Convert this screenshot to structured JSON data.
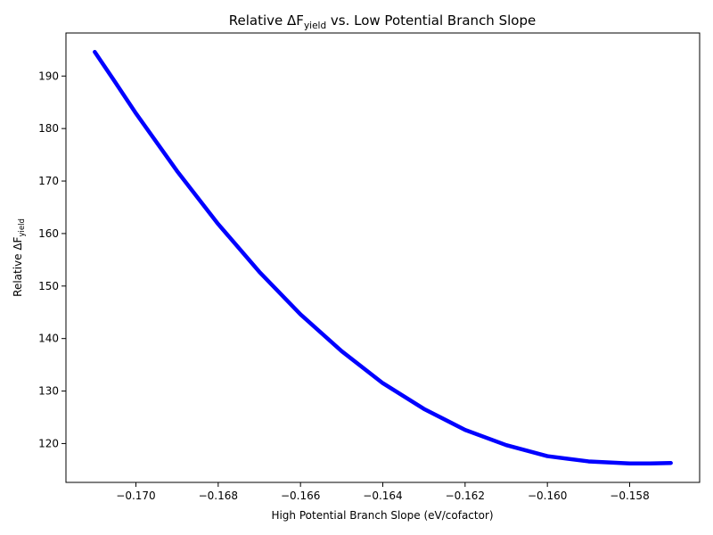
{
  "chart_data": {
    "type": "line",
    "title": {
      "main": "Relative ΔF",
      "sub": "yield",
      "suffix": " vs. Low Potential Branch Slope"
    },
    "xlabel": "High Potential Branch Slope (eV/cofactor)",
    "ylabel": {
      "main": "Relative ΔF",
      "sub": "yield"
    },
    "xlim": [
      -0.1717,
      -0.1563
    ],
    "ylim": [
      112.6,
      198.2
    ],
    "xticks": [
      -0.17,
      -0.168,
      -0.166,
      -0.164,
      -0.162,
      -0.16,
      -0.158
    ],
    "xtick_labels": [
      "−0.170",
      "−0.168",
      "−0.166",
      "−0.164",
      "−0.162",
      "−0.160",
      "−0.158"
    ],
    "yticks": [
      120,
      130,
      140,
      150,
      160,
      170,
      180,
      190
    ],
    "ytick_labels": [
      "120",
      "130",
      "140",
      "150",
      "160",
      "170",
      "180",
      "190"
    ],
    "grid": false,
    "legend": "none",
    "color": "#0000ff",
    "series": [
      {
        "x": [
          -0.171,
          -0.1705,
          -0.17,
          -0.169,
          -0.168,
          -0.167,
          -0.166,
          -0.165,
          -0.164,
          -0.163,
          -0.162,
          -0.161,
          -0.16,
          -0.159,
          -0.158,
          -0.1575,
          -0.157
        ],
        "values": [
          194.6,
          188.8,
          182.9,
          171.9,
          161.8,
          152.7,
          144.6,
          137.6,
          131.5,
          126.6,
          122.6,
          119.7,
          117.6,
          116.6,
          116.2,
          116.2,
          116.3
        ]
      }
    ]
  }
}
